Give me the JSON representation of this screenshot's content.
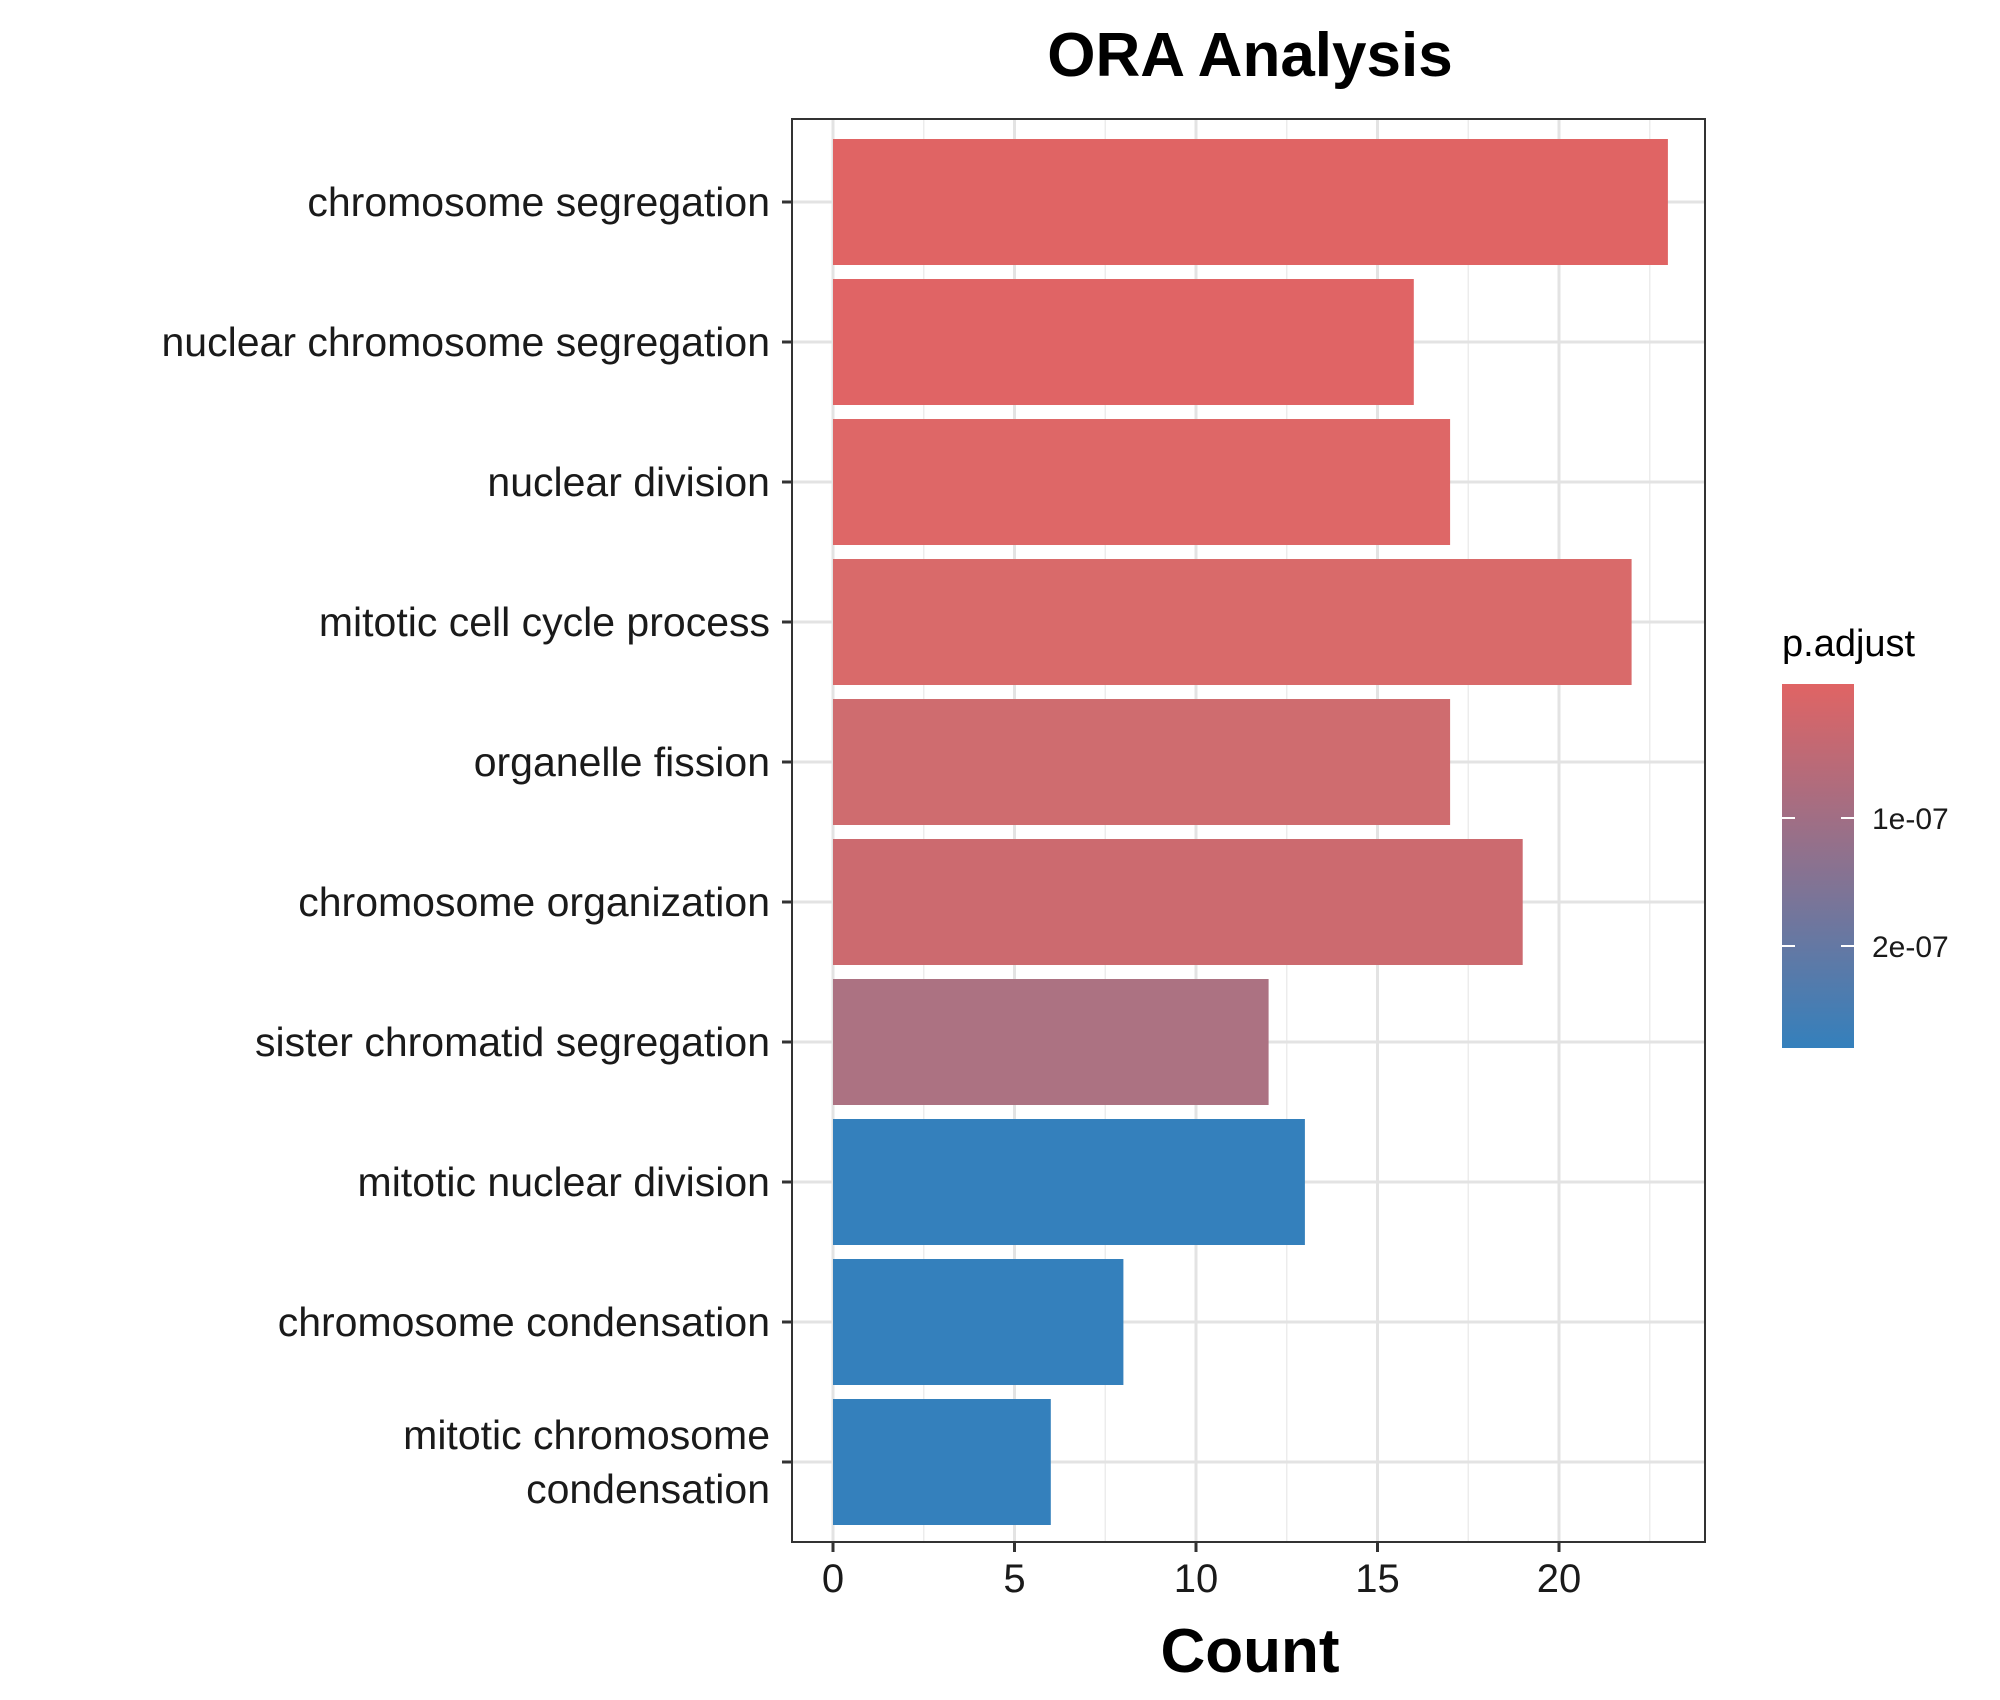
{
  "chart_data": {
    "type": "bar",
    "orientation": "horizontal",
    "title": "ORA Analysis",
    "xlabel": "Count",
    "ylabel": "",
    "xlim": [
      0,
      24
    ],
    "xticks": [
      0,
      5,
      10,
      15,
      20
    ],
    "xtick_labels": [
      "0",
      "5",
      "10",
      "15",
      "20"
    ],
    "grid": true,
    "categories": [
      "chromosome segregation",
      "nuclear chromosome segregation",
      "nuclear division",
      "mitotic cell cycle process",
      "organelle fission",
      "chromosome organization",
      "sister chromatid segregation",
      "mitotic nuclear division",
      "chromosome condensation",
      "mitotic chromosome condensation"
    ],
    "category_display_lines": [
      [
        "chromosome segregation"
      ],
      [
        "nuclear chromosome segregation"
      ],
      [
        "nuclear division"
      ],
      [
        "mitotic cell cycle process"
      ],
      [
        "organelle fission"
      ],
      [
        "chromosome organization"
      ],
      [
        "sister chromatid segregation"
      ],
      [
        "mitotic nuclear division"
      ],
      [
        "chromosome condensation"
      ],
      [
        "mitotic chromosome",
        "condensation"
      ]
    ],
    "values": [
      23,
      16,
      17,
      22,
      17,
      19,
      12,
      13,
      8,
      6
    ],
    "bar_colors": [
      "#e06464",
      "#e06465",
      "#de6767",
      "#d96a6a",
      "#cf6c6f",
      "#cc6a6f",
      "#ac7282",
      "#3480bc",
      "#3480bc",
      "#3480bc"
    ],
    "legend": {
      "title": "p.adjust",
      "placement": "right",
      "type": "colorbar",
      "color_high": "#e06464",
      "color_low": "#3480bc",
      "tick_labels": [
        "1e-07",
        "2e-07"
      ]
    }
  }
}
